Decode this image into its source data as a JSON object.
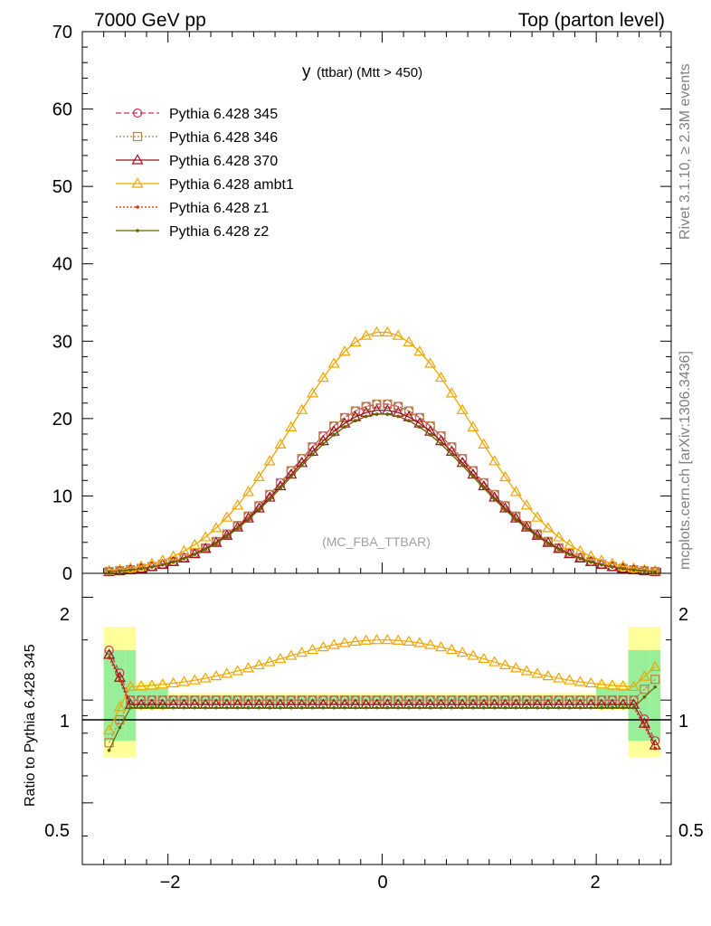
{
  "header": {
    "left": "7000 GeV pp",
    "right": "Top (parton level)"
  },
  "side_labels": {
    "rivet": "Rivet 3.1.10, ≥ 2.3M events",
    "mcplots": "mcplots.cern.ch [arXiv:1306.3436]"
  },
  "chart_data": [
    {
      "type": "line",
      "title_main": "y",
      "title_sub": "(ttbar) (Mtt > 450)",
      "watermark": "(MC_FBA_TTBAR)",
      "xlim": [
        -2.8,
        2.7
      ],
      "ylim": [
        0,
        70
      ],
      "yticks": [
        0,
        10,
        20,
        30,
        40,
        50,
        60,
        70
      ],
      "ytick_labels": [
        "0",
        "10",
        "20",
        "30",
        "40",
        "50",
        "60",
        "70"
      ],
      "legend_position": "top-left",
      "series": [
        {
          "name": "Pythia 6.428 345",
          "color": "#cc3355",
          "dash": "6,3",
          "marker": "circle-open",
          "peak": 21.9
        },
        {
          "name": "Pythia 6.428 346",
          "color": "#b8834a",
          "dash": "2,2",
          "marker": "square-open",
          "peak": 21.9
        },
        {
          "name": "Pythia 6.428 370",
          "color": "#99111e",
          "dash": "",
          "marker": "triangle-open",
          "peak": 21.1
        },
        {
          "name": "Pythia 6.428 ambt1",
          "color": "#f0a500",
          "dash": "",
          "marker": "triangle-open",
          "peak": 31.2
        },
        {
          "name": "Pythia 6.428 z1",
          "color": "#dd2200",
          "dash": "2,2",
          "marker": "dot",
          "peak": 20.6
        },
        {
          "name": "Pythia 6.428 z2",
          "color": "#666600",
          "dash": "",
          "marker": "dot",
          "peak": 20.6
        }
      ]
    },
    {
      "type": "line",
      "ylabel": "Ratio to Pythia 6.428 345",
      "xlim": [
        -2.8,
        2.7
      ],
      "ylim": [
        0.33,
        2.35
      ],
      "ytick_labels": [
        "0.5",
        "1",
        "2"
      ],
      "xtick_labels": [
        "−2",
        "0",
        "2"
      ],
      "series_ratio_center": [
        {
          "name": "Pythia 6.428 345",
          "value": 1.0
        },
        {
          "name": "Pythia 6.428 346",
          "value": 1.0
        },
        {
          "name": "Pythia 6.428 370",
          "value": 0.97
        },
        {
          "name": "Pythia 6.428 ambt1",
          "value": 1.5
        },
        {
          "name": "Pythia 6.428 z1",
          "value": 0.95
        },
        {
          "name": "Pythia 6.428 z2",
          "value": 0.95
        }
      ]
    }
  ]
}
